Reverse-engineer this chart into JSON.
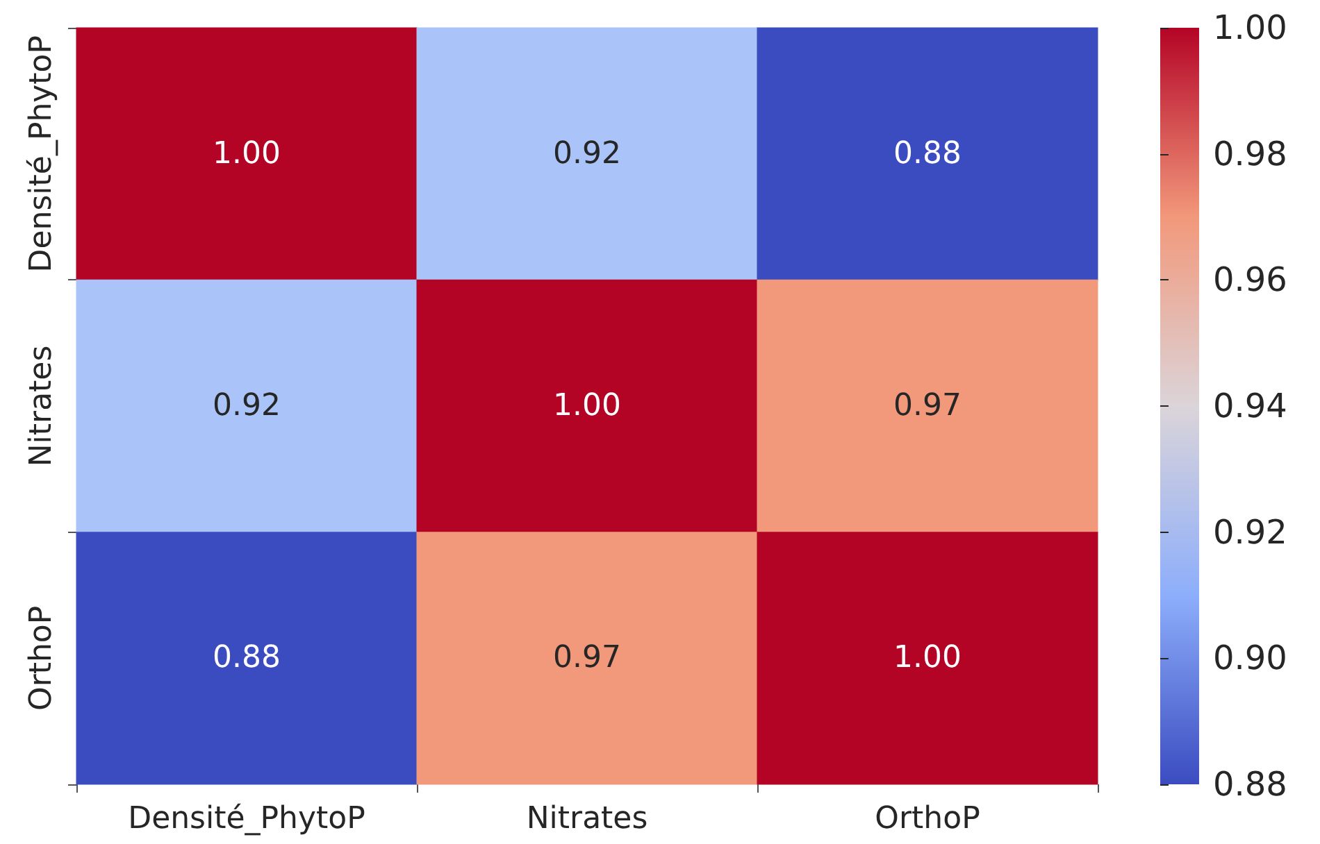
{
  "chart_data": {
    "type": "heatmap",
    "categories": [
      "Densité_PhytoP",
      "Nitrates",
      "OrthoP"
    ],
    "y_categories": [
      "Densité_PhytoP",
      "Nitrates",
      "OrthoP"
    ],
    "cells": [
      [
        1.0,
        0.92,
        0.88
      ],
      [
        0.92,
        1.0,
        0.97
      ],
      [
        0.88,
        0.97,
        1.0
      ]
    ],
    "cell_labels": [
      [
        "1.00",
        "0.92",
        "0.88"
      ],
      [
        "0.92",
        "1.00",
        "0.97"
      ],
      [
        "0.88",
        "0.97",
        "1.00"
      ]
    ],
    "clim": [
      0.88,
      1.0
    ],
    "cticks": [
      0.88,
      {
        "value": 0.9,
        "label": "0.90"
      },
      0.92,
      0.94,
      0.96,
      0.98,
      {
        "value": 1.0,
        "label": "1.00"
      }
    ]
  }
}
